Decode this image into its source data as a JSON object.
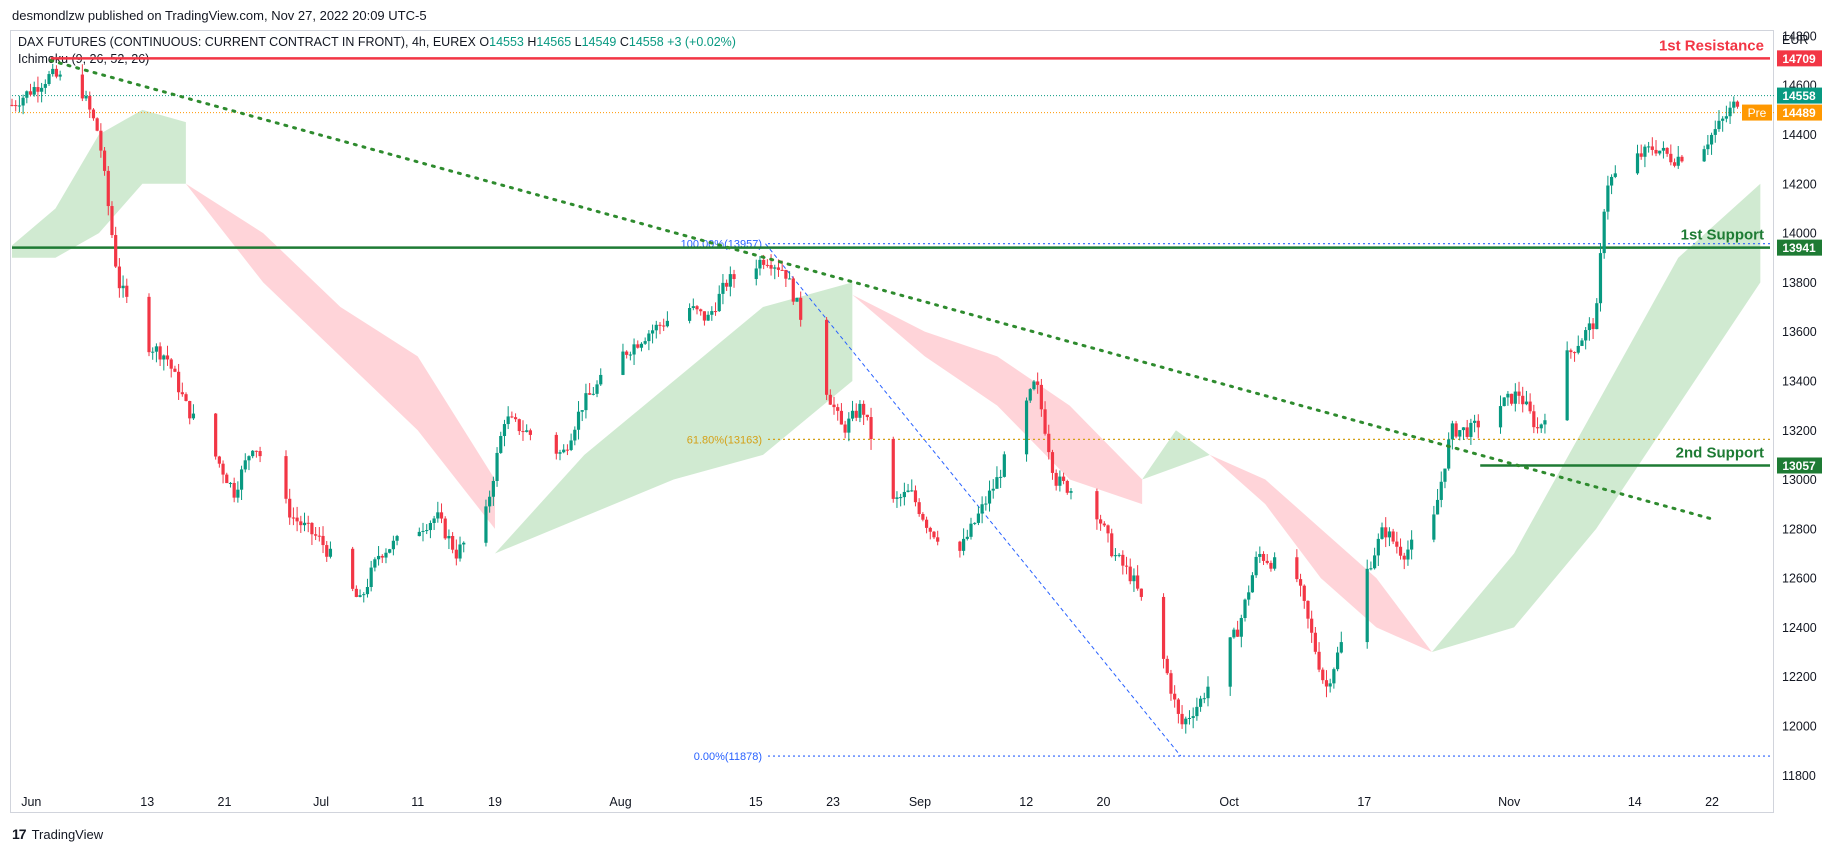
{
  "header": {
    "published_by": "desmondlzw published on TradingView.com, Nov 27, 2022 20:09 UTC-5"
  },
  "legend": {
    "symbol": "DAX FUTURES (CONTINUOUS: CURRENT CONTRACT IN FRONT), 4h, EUREX",
    "o_label": "O",
    "o_value": "14553",
    "h_label": "H",
    "h_value": "14565",
    "l_label": "L",
    "l_value": "14549",
    "c_label": "C",
    "c_value": "14558",
    "change": "+3 (+0.02%)",
    "indicator": "Ichimoku (9, 26, 52, 26)"
  },
  "footer": {
    "brand": "TradingView"
  },
  "colors": {
    "up": "#089981",
    "down": "#f23645",
    "resistance": "#f23645",
    "support": "#1e7b34",
    "trend": "#2e8b2e",
    "fib": "#2962ff",
    "fib618": "#d4a017",
    "cloud_bull": "#c8e6c9",
    "cloud_bear": "#ffcdd2",
    "last_price": "#089981",
    "pre_market": "#ff9800"
  },
  "chart_data": {
    "type": "candlestick",
    "currency": "EUR",
    "ylim": [
      11720,
      14820
    ],
    "y_ticks": [
      "14800",
      "14600",
      "14400",
      "14200",
      "14000",
      "13800",
      "13600",
      "13400",
      "13200",
      "13000",
      "12800",
      "12600",
      "12400",
      "12200",
      "12000",
      "11800"
    ],
    "x_ticks": [
      {
        "label": "Jun",
        "date": "2022-06-01"
      },
      {
        "label": "13",
        "date": "2022-06-13"
      },
      {
        "label": "21",
        "date": "2022-06-21"
      },
      {
        "label": "Jul",
        "date": "2022-07-01"
      },
      {
        "label": "11",
        "date": "2022-07-11"
      },
      {
        "label": "19",
        "date": "2022-07-19"
      },
      {
        "label": "Aug",
        "date": "2022-08-01"
      },
      {
        "label": "15",
        "date": "2022-08-15"
      },
      {
        "label": "23",
        "date": "2022-08-23"
      },
      {
        "label": "Sep",
        "date": "2022-09-01"
      },
      {
        "label": "12",
        "date": "2022-09-12"
      },
      {
        "label": "20",
        "date": "2022-09-20"
      },
      {
        "label": "Oct",
        "date": "2022-10-03"
      },
      {
        "label": "17",
        "date": "2022-10-17"
      },
      {
        "label": "Nov",
        "date": "2022-11-01"
      },
      {
        "label": "14",
        "date": "2022-11-14"
      },
      {
        "label": "22",
        "date": "2022-11-22"
      }
    ],
    "price_path": [
      [
        "2022-05-30",
        14520
      ],
      [
        "2022-06-03",
        14640
      ],
      [
        "2022-06-06",
        14600
      ],
      [
        "2022-06-08",
        14400
      ],
      [
        "2022-06-10",
        13800
      ],
      [
        "2022-06-13",
        13550
      ],
      [
        "2022-06-15",
        13500
      ],
      [
        "2022-06-17",
        13300
      ],
      [
        "2022-06-20",
        13100
      ],
      [
        "2022-06-22",
        12950
      ],
      [
        "2022-06-24",
        13150
      ],
      [
        "2022-06-28",
        12850
      ],
      [
        "2022-07-01",
        12750
      ],
      [
        "2022-07-05",
        12500
      ],
      [
        "2022-07-07",
        12700
      ],
      [
        "2022-07-11",
        12800
      ],
      [
        "2022-07-13",
        12850
      ],
      [
        "2022-07-15",
        12700
      ],
      [
        "2022-07-18",
        12850
      ],
      [
        "2022-07-20",
        13250
      ],
      [
        "2022-07-22",
        13200
      ],
      [
        "2022-07-26",
        13100
      ],
      [
        "2022-07-28",
        13300
      ],
      [
        "2022-08-01",
        13500
      ],
      [
        "2022-08-04",
        13600
      ],
      [
        "2022-08-08",
        13700
      ],
      [
        "2022-08-10",
        13650
      ],
      [
        "2022-08-12",
        13800
      ],
      [
        "2022-08-16",
        13900
      ],
      [
        "2022-08-18",
        13850
      ],
      [
        "2022-08-22",
        13400
      ],
      [
        "2022-08-24",
        13200
      ],
      [
        "2022-08-26",
        13300
      ],
      [
        "2022-08-29",
        12900
      ],
      [
        "2022-08-31",
        12950
      ],
      [
        "2022-09-02",
        12800
      ],
      [
        "2022-09-05",
        12700
      ],
      [
        "2022-09-07",
        12850
      ],
      [
        "2022-09-09",
        13000
      ],
      [
        "2022-09-13",
        13400
      ],
      [
        "2022-09-15",
        13000
      ],
      [
        "2022-09-19",
        12900
      ],
      [
        "2022-09-21",
        12700
      ],
      [
        "2022-09-23",
        12600
      ],
      [
        "2022-09-26",
        12300
      ],
      [
        "2022-09-28",
        12000
      ],
      [
        "2022-09-30",
        12100
      ],
      [
        "2022-10-04",
        12400
      ],
      [
        "2022-10-06",
        12700
      ],
      [
        "2022-10-10",
        12600
      ],
      [
        "2022-10-12",
        12300
      ],
      [
        "2022-10-13",
        12150
      ],
      [
        "2022-10-17",
        12600
      ],
      [
        "2022-10-19",
        12800
      ],
      [
        "2022-10-21",
        12700
      ],
      [
        "2022-10-24",
        12800
      ],
      [
        "2022-10-26",
        13200
      ],
      [
        "2022-10-28",
        13200
      ],
      [
        "2022-10-31",
        13300
      ],
      [
        "2022-11-02",
        13350
      ],
      [
        "2022-11-04",
        13200
      ],
      [
        "2022-11-07",
        13500
      ],
      [
        "2022-11-09",
        13600
      ],
      [
        "2022-11-10",
        13650
      ],
      [
        "2022-11-11",
        14200
      ],
      [
        "2022-11-14",
        14300
      ],
      [
        "2022-11-16",
        14350
      ],
      [
        "2022-11-18",
        14300
      ],
      [
        "2022-11-21",
        14350
      ],
      [
        "2022-11-23",
        14450
      ],
      [
        "2022-11-25",
        14558
      ]
    ],
    "ichimoku_cloud_segments": [
      {
        "sentiment": "bull",
        "start": "2022-05-30",
        "end": "2022-06-17",
        "span_a": [
          13950,
          14100,
          14400,
          14500,
          14450
        ],
        "span_b": [
          13900,
          13900,
          14000,
          14200,
          14200
        ]
      },
      {
        "sentiment": "bear",
        "start": "2022-06-17",
        "end": "2022-07-19",
        "span_a": [
          14200,
          13800,
          13500,
          13200,
          12800
        ],
        "span_b": [
          14200,
          14000,
          13700,
          13500,
          13000
        ]
      },
      {
        "sentiment": "bull",
        "start": "2022-07-19",
        "end": "2022-08-25",
        "span_a": [
          12700,
          13100,
          13400,
          13700,
          13800
        ],
        "span_b": [
          12700,
          12850,
          13000,
          13100,
          13400
        ]
      },
      {
        "sentiment": "bear",
        "start": "2022-08-25",
        "end": "2022-09-24",
        "span_a": [
          13750,
          13500,
          13300,
          13000,
          12900
        ],
        "span_b": [
          13750,
          13600,
          13500,
          13300,
          13000
        ]
      },
      {
        "sentiment": "bull",
        "start": "2022-09-24",
        "end": "2022-10-01",
        "span_a": [
          13000,
          13200,
          13100
        ],
        "span_b": [
          13000,
          13050,
          13100
        ]
      },
      {
        "sentiment": "bear",
        "start": "2022-10-01",
        "end": "2022-10-24",
        "span_a": [
          13100,
          12900,
          12600,
          12400,
          12300
        ],
        "span_b": [
          13100,
          13000,
          12800,
          12600,
          12300
        ]
      },
      {
        "sentiment": "bull",
        "start": "2022-10-24",
        "end": "2022-11-27",
        "span_a": [
          12300,
          12700,
          13300,
          13900,
          14200
        ],
        "span_b": [
          12300,
          12400,
          12800,
          13300,
          13800
        ]
      }
    ],
    "trendline": {
      "from": [
        "2022-06-03",
        14700
      ],
      "to": [
        "2022-11-22",
        12840
      ]
    },
    "fibonacci": {
      "start": [
        "2022-08-16",
        13957
      ],
      "end": [
        "2022-09-28",
        11878
      ],
      "levels": [
        {
          "label": "100.00%(13957)",
          "value": 13957
        },
        {
          "label": "61.80%(13163)",
          "value": 13163
        },
        {
          "label": "0.00%(11878)",
          "value": 11878
        }
      ]
    },
    "horizontal_lines": [
      {
        "label": "1st Resistance",
        "value": 14709,
        "price_label": "14709",
        "color": "#f23645",
        "start": "2022-06-03"
      },
      {
        "label": "1st Support",
        "value": 13941,
        "price_label": "13941",
        "color": "#1e7b34",
        "start": "2022-05-30"
      },
      {
        "label": "2nd Support",
        "value": 13057,
        "price_label": "13057",
        "color": "#1e7b34",
        "start": "2022-10-29"
      }
    ],
    "last_price": {
      "value": 14558,
      "price_label": "14558"
    },
    "pre_market": {
      "value": 14489,
      "price_label": "14489",
      "tag": "Pre"
    }
  }
}
